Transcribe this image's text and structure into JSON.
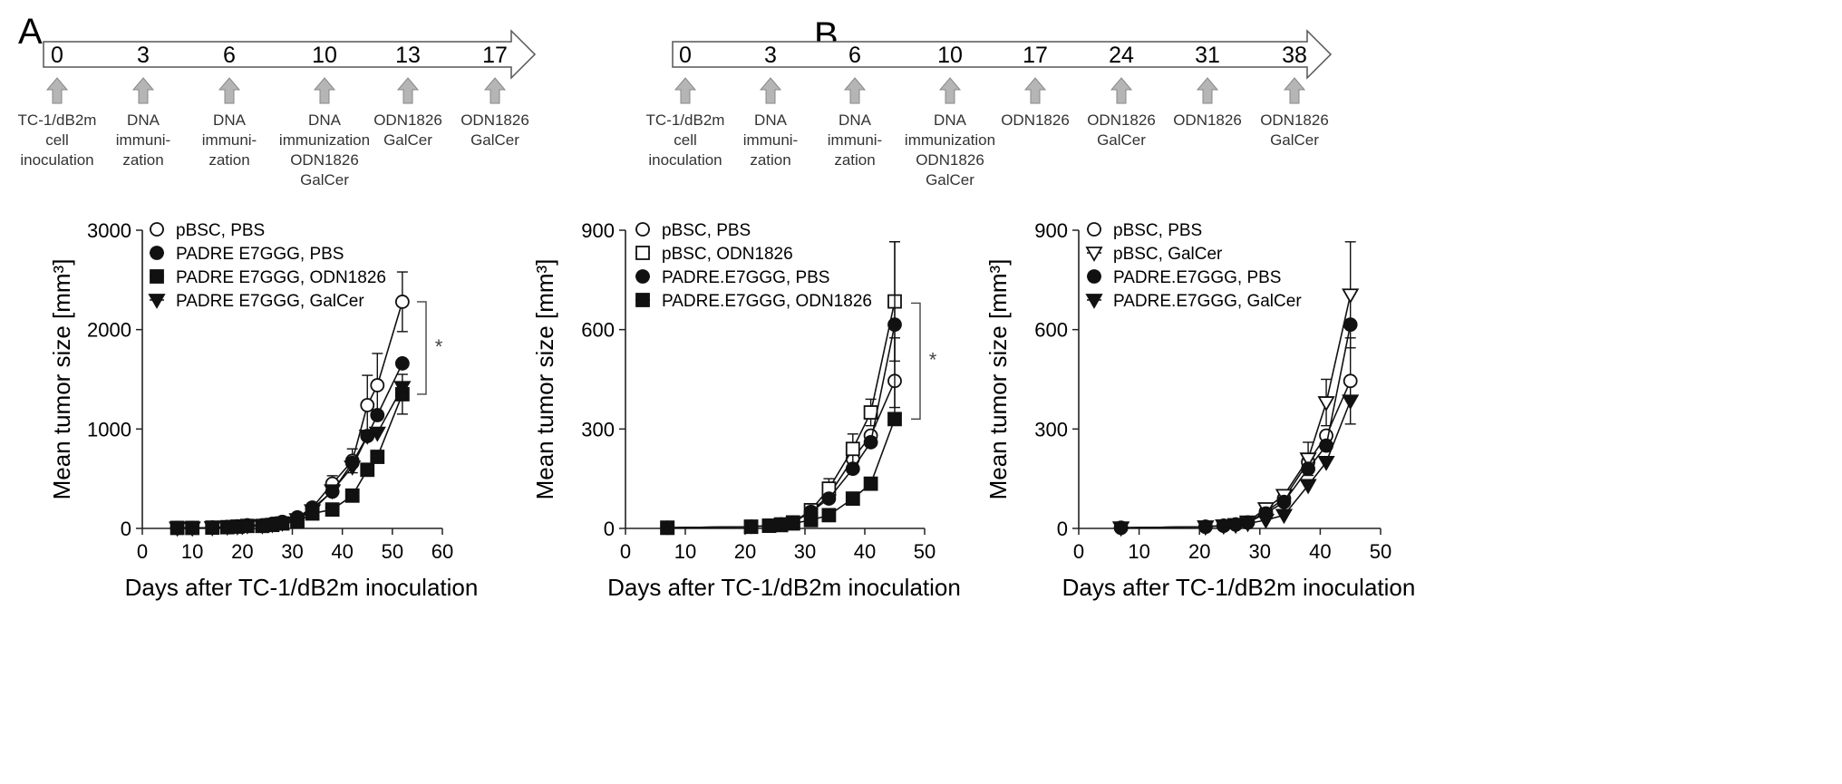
{
  "panels": {
    "A": {
      "letter": "A",
      "timeline": [
        {
          "day": "0",
          "lines": [
            "TC-1/dB2m",
            "cell",
            "inoculation"
          ]
        },
        {
          "day": "3",
          "lines": [
            "DNA",
            "immuni-",
            "zation"
          ]
        },
        {
          "day": "6",
          "lines": [
            "DNA",
            "immuni-",
            "zation"
          ]
        },
        {
          "day": "10",
          "lines": [
            "DNA",
            "immunization",
            "ODN1826",
            "GalCer"
          ]
        },
        {
          "day": "13",
          "lines": [
            "ODN1826",
            "GalCer"
          ]
        },
        {
          "day": "17",
          "lines": [
            "ODN1826",
            "GalCer"
          ]
        }
      ]
    },
    "B": {
      "letter": "B",
      "timeline": [
        {
          "day": "0",
          "lines": [
            "TC-1/dB2m",
            "cell",
            "inoculation"
          ]
        },
        {
          "day": "3",
          "lines": [
            "DNA",
            "immuni-",
            "zation"
          ]
        },
        {
          "day": "6",
          "lines": [
            "DNA",
            "immuni-",
            "zation"
          ]
        },
        {
          "day": "10",
          "lines": [
            "DNA",
            "immunization",
            "ODN1826",
            "GalCer"
          ]
        },
        {
          "day": "17",
          "lines": [
            "ODN1826"
          ]
        },
        {
          "day": "24",
          "lines": [
            "ODN1826",
            "GalCer"
          ]
        },
        {
          "day": "31",
          "lines": [
            "ODN1826"
          ]
        },
        {
          "day": "38",
          "lines": [
            "ODN1826",
            "GalCer"
          ]
        }
      ]
    }
  },
  "chart_data": [
    {
      "type": "line",
      "xlabel": "Days after TC-1/dB2m inoculation",
      "ylabel": "Mean tumor size [mm³]",
      "xlim": [
        0,
        60
      ],
      "ylim": [
        0,
        3000
      ],
      "xticks": [
        0,
        10,
        20,
        30,
        40,
        50,
        60
      ],
      "yticks": [
        0,
        1000,
        2000,
        3000
      ],
      "legend_position": "top-left",
      "significance": {
        "label": "*",
        "y_range": [
          1350,
          2280
        ]
      },
      "series": [
        {
          "name": "pBSC, PBS",
          "marker": "circle-open",
          "x": [
            7,
            10,
            14,
            17,
            19,
            21,
            24,
            26,
            28,
            31,
            34,
            38,
            42,
            45,
            47,
            52
          ],
          "y": [
            5,
            5,
            8,
            15,
            20,
            30,
            30,
            45,
            65,
            110,
            210,
            450,
            680,
            1240,
            1440,
            2280
          ],
          "err": [
            0,
            0,
            0,
            0,
            0,
            0,
            0,
            0,
            0,
            0,
            0,
            80,
            120,
            300,
            320,
            300
          ]
        },
        {
          "name": "PADRE E7GGG, PBS",
          "marker": "circle-filled",
          "x": [
            7,
            10,
            14,
            17,
            19,
            21,
            24,
            26,
            28,
            31,
            34,
            38,
            42,
            45,
            47,
            52
          ],
          "y": [
            5,
            5,
            8,
            15,
            20,
            30,
            30,
            45,
            65,
            110,
            200,
            370,
            660,
            930,
            1140,
            1660
          ],
          "err": [
            0,
            0,
            0,
            0,
            0,
            0,
            0,
            0,
            0,
            0,
            0,
            0,
            0,
            0,
            0,
            0
          ]
        },
        {
          "name": "PADRE E7GGG, ODN1826",
          "marker": "square-filled",
          "x": [
            7,
            10,
            14,
            17,
            19,
            21,
            24,
            26,
            28,
            31,
            34,
            38,
            42,
            45,
            47,
            52
          ],
          "y": [
            5,
            5,
            8,
            12,
            18,
            25,
            25,
            35,
            50,
            70,
            150,
            190,
            330,
            590,
            720,
            1350
          ],
          "err": [
            0,
            0,
            0,
            0,
            0,
            0,
            0,
            0,
            0,
            0,
            0,
            0,
            0,
            0,
            0,
            200
          ]
        },
        {
          "name": "PADRE E7GGG, GalCer",
          "marker": "triangle-down-filled",
          "x": [
            7,
            10,
            14,
            17,
            19,
            21,
            24,
            26,
            28,
            31,
            34,
            38,
            42,
            45,
            47,
            52
          ],
          "y": [
            5,
            5,
            8,
            15,
            18,
            28,
            28,
            40,
            55,
            90,
            180,
            380,
            620,
            930,
            960,
            1420
          ],
          "err": [
            0,
            0,
            0,
            0,
            0,
            0,
            0,
            0,
            0,
            0,
            0,
            0,
            0,
            0,
            0,
            0
          ]
        }
      ]
    },
    {
      "type": "line",
      "xlabel": "Days after TC-1/dB2m inoculation",
      "ylabel": "Mean tumor size [mm³]",
      "xlim": [
        0,
        50
      ],
      "ylim": [
        0,
        900
      ],
      "xticks": [
        0,
        10,
        20,
        30,
        40,
        50
      ],
      "yticks": [
        0,
        300,
        600,
        900
      ],
      "legend_position": "top-left",
      "significance": {
        "label": "*",
        "y_range": [
          330,
          680
        ]
      },
      "series": [
        {
          "name": "pBSC, PBS",
          "marker": "circle-open",
          "x": [
            7,
            21,
            24,
            26,
            28,
            31,
            34,
            38,
            41,
            45
          ],
          "y": [
            2,
            5,
            8,
            12,
            18,
            50,
            100,
            210,
            280,
            445
          ],
          "err": [
            0,
            0,
            0,
            0,
            0,
            0,
            0,
            0,
            0,
            130
          ]
        },
        {
          "name": "pBSC, ODN1826",
          "marker": "square-open",
          "x": [
            7,
            21,
            24,
            26,
            28,
            31,
            34,
            38,
            41,
            45
          ],
          "y": [
            2,
            5,
            8,
            12,
            18,
            55,
            120,
            240,
            350,
            685
          ],
          "err": [
            0,
            0,
            0,
            0,
            0,
            0,
            30,
            45,
            40,
            180
          ]
        },
        {
          "name": "PADRE.E7GGG, PBS",
          "marker": "circle-filled",
          "x": [
            7,
            21,
            24,
            26,
            28,
            31,
            34,
            38,
            41,
            45
          ],
          "y": [
            2,
            5,
            8,
            12,
            18,
            50,
            90,
            180,
            260,
            615
          ],
          "err": [
            0,
            0,
            0,
            0,
            0,
            0,
            0,
            0,
            0,
            250
          ]
        },
        {
          "name": "PADRE.E7GGG, ODN1826",
          "marker": "square-filled",
          "x": [
            7,
            21,
            24,
            26,
            28,
            31,
            34,
            38,
            41,
            45
          ],
          "y": [
            2,
            5,
            8,
            10,
            15,
            25,
            40,
            90,
            135,
            330
          ],
          "err": [
            0,
            0,
            0,
            0,
            0,
            0,
            0,
            0,
            0,
            0
          ]
        }
      ]
    },
    {
      "type": "line",
      "xlabel": "Days after TC-1/dB2m inoculation",
      "ylabel": "Mean tumor size [mm³]",
      "xlim": [
        0,
        50
      ],
      "ylim": [
        0,
        900
      ],
      "xticks": [
        0,
        10,
        20,
        30,
        40,
        50
      ],
      "yticks": [
        0,
        300,
        600,
        900
      ],
      "legend_position": "top-left",
      "series": [
        {
          "name": "pBSC, PBS",
          "marker": "circle-open",
          "x": [
            7,
            21,
            24,
            26,
            28,
            31,
            34,
            38,
            41,
            45
          ],
          "y": [
            2,
            5,
            8,
            12,
            18,
            50,
            90,
            200,
            280,
            445
          ],
          "err": [
            0,
            0,
            0,
            0,
            0,
            0,
            0,
            0,
            0,
            130
          ]
        },
        {
          "name": "pBSC, GalCer",
          "marker": "triangle-down-open",
          "x": [
            7,
            21,
            24,
            26,
            28,
            31,
            34,
            38,
            41,
            45
          ],
          "y": [
            2,
            5,
            8,
            12,
            20,
            60,
            100,
            210,
            380,
            705
          ],
          "err": [
            0,
            0,
            0,
            0,
            0,
            0,
            0,
            50,
            70,
            160
          ]
        },
        {
          "name": "PADRE.E7GGG, PBS",
          "marker": "circle-filled",
          "x": [
            7,
            21,
            24,
            26,
            28,
            31,
            34,
            38,
            41,
            45
          ],
          "y": [
            2,
            5,
            8,
            12,
            18,
            45,
            80,
            180,
            250,
            615
          ],
          "err": [
            0,
            0,
            0,
            0,
            0,
            0,
            0,
            0,
            0,
            0
          ]
        },
        {
          "name": "PADRE.E7GGG, GalCer",
          "marker": "triangle-down-filled",
          "x": [
            7,
            21,
            24,
            26,
            28,
            31,
            34,
            38,
            41,
            45
          ],
          "y": [
            2,
            5,
            8,
            10,
            15,
            25,
            40,
            130,
            200,
            385
          ],
          "err": [
            0,
            0,
            0,
            0,
            0,
            0,
            0,
            0,
            0,
            0
          ]
        }
      ]
    }
  ]
}
